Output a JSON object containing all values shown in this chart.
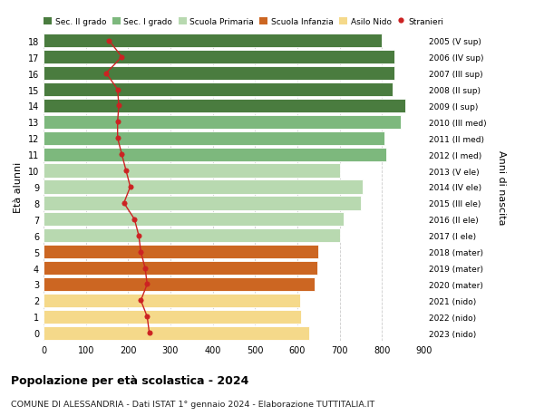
{
  "ages": [
    18,
    17,
    16,
    15,
    14,
    13,
    12,
    11,
    10,
    9,
    8,
    7,
    6,
    5,
    4,
    3,
    2,
    1,
    0
  ],
  "right_labels": [
    "2005 (V sup)",
    "2006 (IV sup)",
    "2007 (III sup)",
    "2008 (II sup)",
    "2009 (I sup)",
    "2010 (III med)",
    "2011 (II med)",
    "2012 (I med)",
    "2013 (V ele)",
    "2014 (IV ele)",
    "2015 (III ele)",
    "2016 (II ele)",
    "2017 (I ele)",
    "2018 (mater)",
    "2019 (mater)",
    "2020 (mater)",
    "2021 (nido)",
    "2022 (nido)",
    "2023 (nido)"
  ],
  "bar_values": [
    800,
    830,
    830,
    825,
    855,
    845,
    805,
    810,
    700,
    755,
    750,
    710,
    700,
    650,
    648,
    640,
    607,
    608,
    628
  ],
  "bar_colors": [
    "#4a7c3f",
    "#4a7c3f",
    "#4a7c3f",
    "#4a7c3f",
    "#4a7c3f",
    "#7db87d",
    "#7db87d",
    "#7db87d",
    "#b8d9b0",
    "#b8d9b0",
    "#b8d9b0",
    "#b8d9b0",
    "#b8d9b0",
    "#cc6622",
    "#cc6622",
    "#cc6622",
    "#f5d98a",
    "#f5d98a",
    "#f5d98a"
  ],
  "stranieri_values": [
    155,
    185,
    148,
    175,
    178,
    175,
    175,
    185,
    195,
    205,
    190,
    215,
    225,
    230,
    240,
    245,
    230,
    245,
    250
  ],
  "legend_labels": [
    "Sec. II grado",
    "Sec. I grado",
    "Scuola Primaria",
    "Scuola Infanzia",
    "Asilo Nido",
    "Stranieri"
  ],
  "legend_colors": [
    "#4a7c3f",
    "#7db87d",
    "#b8d9b0",
    "#cc6622",
    "#f5d98a",
    "#cc2222"
  ],
  "title_bold": "Popolazione per età scolastica - 2024",
  "subtitle": "COMUNE DI ALESSANDRIA - Dati ISTAT 1° gennaio 2024 - Elaborazione TUTTITALIA.IT",
  "ylabel": "Età alunni",
  "ylabel_right": "Anni di nascita",
  "xlim": [
    0,
    900
  ],
  "xticks": [
    0,
    100,
    200,
    300,
    400,
    500,
    600,
    700,
    800,
    900
  ],
  "bar_height": 0.85
}
